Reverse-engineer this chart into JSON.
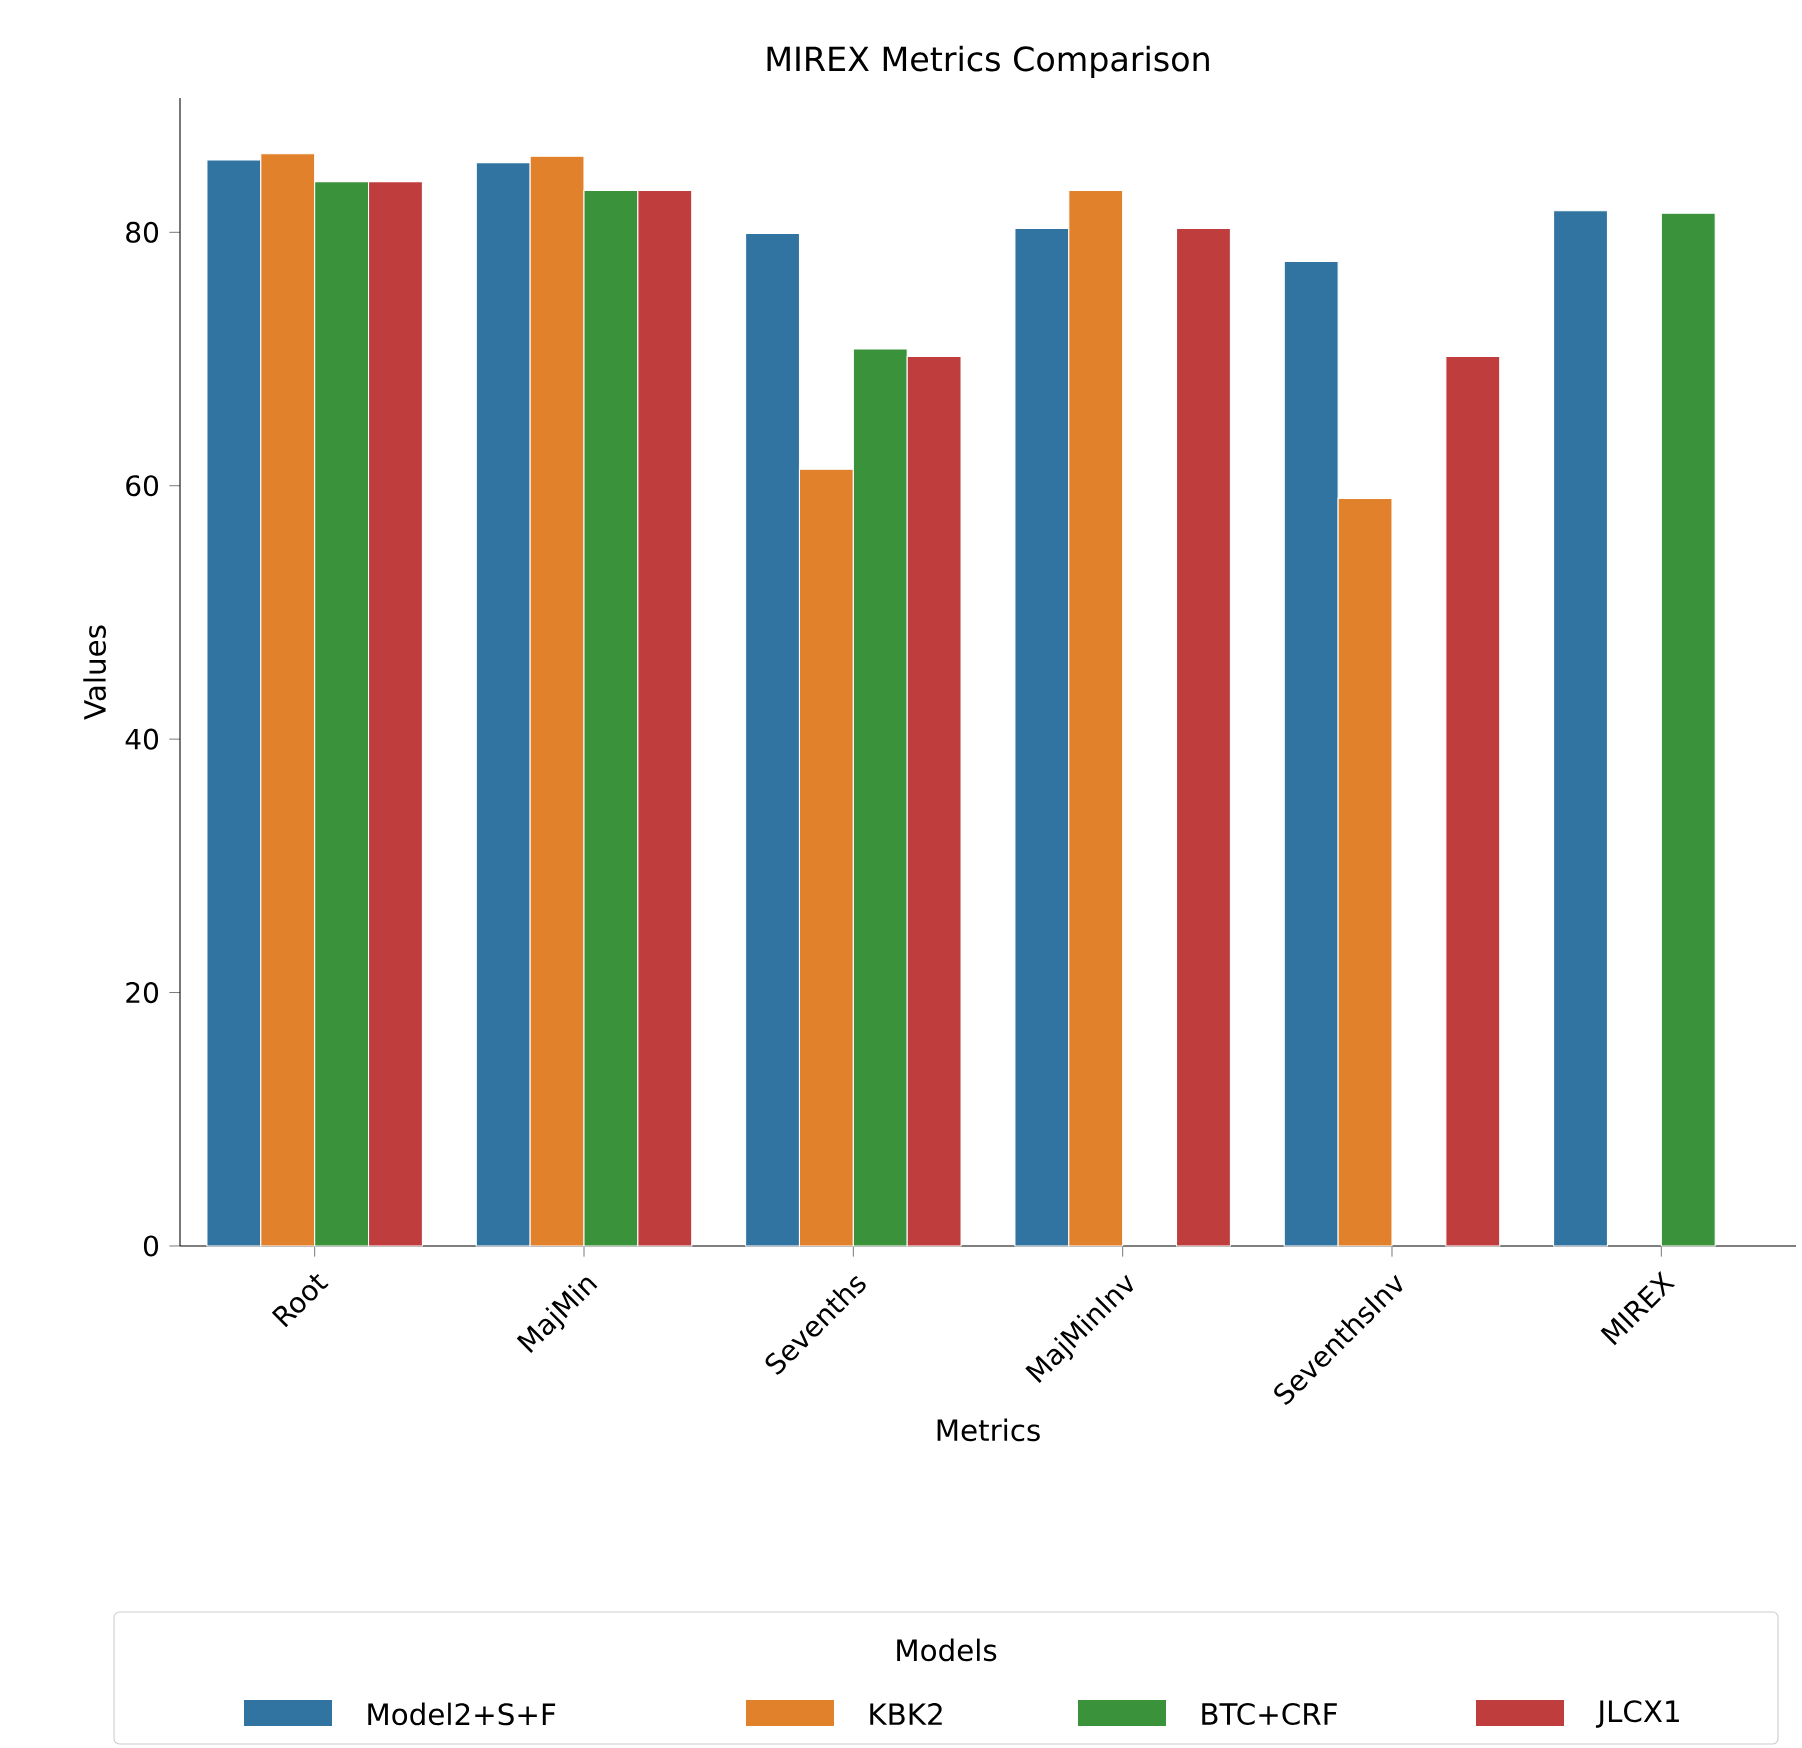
{
  "chart_data": {
    "type": "bar",
    "title": "MIREX Metrics Comparison",
    "xlabel": "Metrics",
    "ylabel": "Values",
    "legend_title": "Models",
    "categories": [
      "Root",
      "MajMin",
      "Sevenths",
      "MajMinInv",
      "SeventhsInv",
      "MIREX"
    ],
    "series": [
      {
        "name": "Model2+S+F",
        "color": "#3274a1",
        "values": [
          85.7,
          85.5,
          79.9,
          80.3,
          77.7,
          81.7
        ]
      },
      {
        "name": "KBK2",
        "color": "#e1812c",
        "values": [
          86.2,
          86.0,
          61.3,
          83.3,
          59.0,
          null
        ]
      },
      {
        "name": "BTC+CRF",
        "color": "#3a923a",
        "values": [
          84.0,
          83.3,
          70.8,
          null,
          null,
          81.5
        ]
      },
      {
        "name": "JLCX1",
        "color": "#c03d3e",
        "values": [
          84.0,
          83.3,
          70.2,
          80.3,
          70.2,
          null
        ]
      }
    ],
    "ylim": [
      0,
      90.6
    ],
    "yticks": [
      0,
      20,
      40,
      60,
      80
    ],
    "grid": false,
    "legend": "bottom"
  }
}
